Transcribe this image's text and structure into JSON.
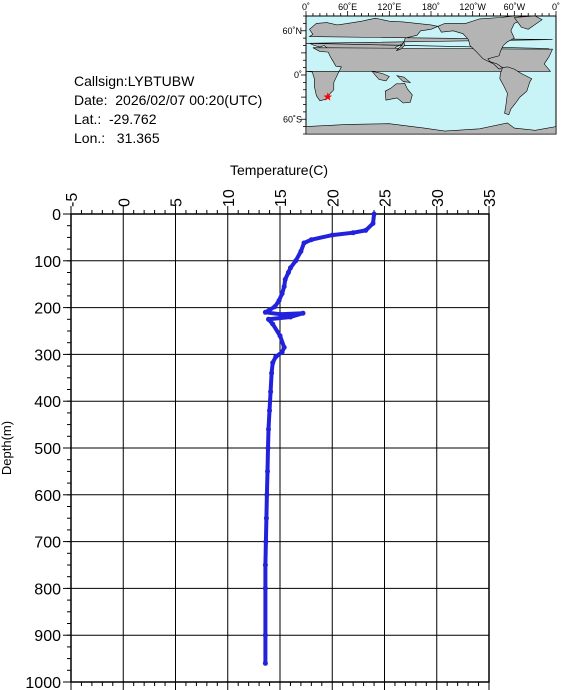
{
  "station": {
    "callsign": "Callsign:LYBTUBW",
    "date": "Date:  2026/02/07 00:20(UTC)",
    "lat": "Lat.:  -29.762",
    "lon": "Lon.:   31.365"
  },
  "map": {
    "top_labels": [
      "0˚",
      "60˚E",
      "120˚E",
      "180˚",
      "120˚W",
      "60˚W",
      "0˚"
    ],
    "left_labels": [
      "60˚N",
      "0˚",
      "60˚S"
    ],
    "ocean_color": "#c8f4f8",
    "land_color": "#b4b4b4",
    "marker_color": "#ff0000",
    "marker_lon": 31.365,
    "marker_lat": -29.762
  },
  "chart_data": {
    "type": "line",
    "xlabel": "Temperature(C)",
    "ylabel": "Depth(m)",
    "xlim": [
      -5,
      35
    ],
    "ylim": [
      1000,
      0
    ],
    "x_ticks": [
      "-5",
      "0",
      "5",
      "10",
      "15",
      "20",
      "25",
      "30",
      "35"
    ],
    "y_ticks": [
      "0",
      "100",
      "200",
      "300",
      "400",
      "500",
      "600",
      "700",
      "800",
      "900",
      "1000"
    ],
    "grid": true,
    "line_color": "#2222dd",
    "series": [
      {
        "x": [
          24.0,
          23.9,
          23.2,
          22.0,
          20.0,
          18.0,
          17.3,
          17.0,
          16.5,
          16.0,
          15.8,
          15.5,
          15.4,
          15.2,
          14.9,
          14.5,
          14.0,
          13.6,
          15.0,
          17.2,
          16.0,
          13.9,
          14.3,
          15.0,
          15.4,
          15.2,
          14.6,
          14.3,
          14.2,
          14.1,
          14.0,
          13.9,
          13.85,
          13.8,
          13.75,
          13.7,
          13.65,
          13.6,
          13.6,
          13.6,
          13.6
        ],
        "y": [
          0,
          20,
          35,
          40,
          45,
          55,
          62,
          80,
          100,
          115,
          125,
          140,
          155,
          170,
          185,
          198,
          205,
          210,
          214,
          212,
          220,
          225,
          235,
          260,
          285,
          295,
          305,
          318,
          340,
          380,
          420,
          460,
          500,
          550,
          600,
          650,
          700,
          750,
          800,
          900,
          960
        ]
      }
    ]
  }
}
